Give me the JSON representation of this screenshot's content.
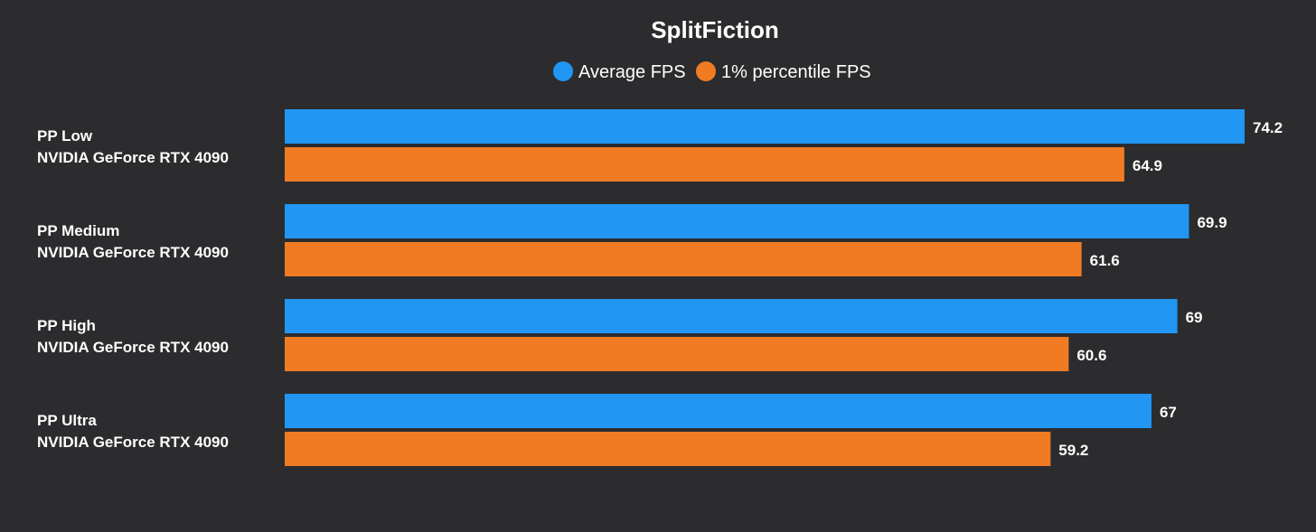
{
  "chart_data": {
    "type": "bar",
    "orientation": "horizontal",
    "title": "SplitFiction",
    "categories": [
      {
        "line1": "PP Low",
        "line2": "NVIDIA GeForce RTX 4090"
      },
      {
        "line1": "PP Medium",
        "line2": "NVIDIA GeForce RTX 4090"
      },
      {
        "line1": "PP High",
        "line2": "NVIDIA GeForce RTX 4090"
      },
      {
        "line1": "PP Ultra",
        "line2": "NVIDIA GeForce RTX 4090"
      }
    ],
    "series": [
      {
        "name": "Average FPS",
        "color": "#2196f3",
        "values": [
          74.2,
          69.9,
          69,
          67
        ]
      },
      {
        "name": "1% percentile FPS",
        "color": "#f07b22",
        "values": [
          64.9,
          61.6,
          60.6,
          59.2
        ]
      }
    ],
    "xlim": [
      0,
      74.2
    ],
    "legend_position": "top-center",
    "grid": false,
    "data_labels": true
  }
}
